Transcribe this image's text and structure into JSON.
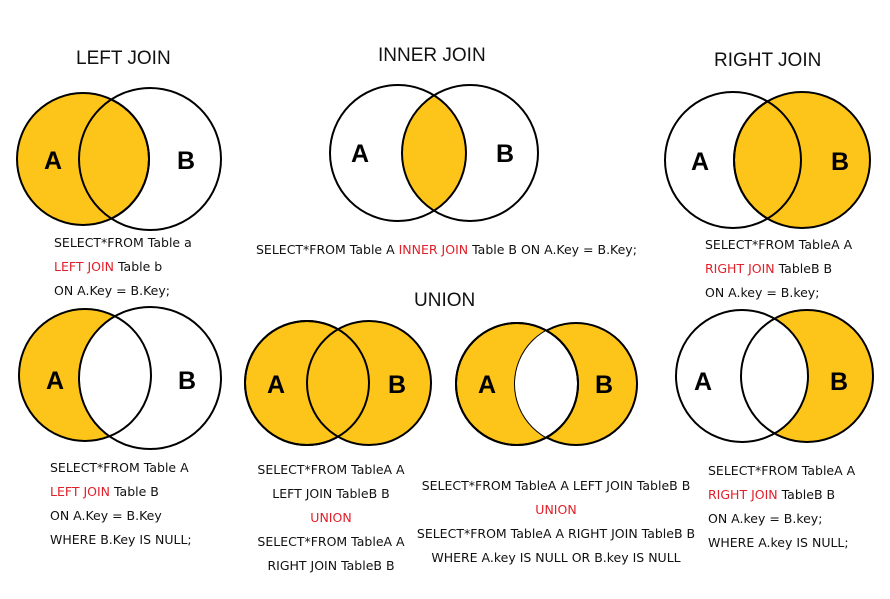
{
  "colors": {
    "fill": "#fdc41a",
    "stroke": "#000000",
    "keyword": "#e0202a",
    "background": "#ffffff"
  },
  "titles": {
    "left_join": "LEFT JOIN",
    "inner_join": "INNER JOIN",
    "right_join": "RIGHT JOIN",
    "union": "UNION"
  },
  "venn": {
    "label_a": "A",
    "label_b": "B"
  },
  "sql": {
    "left_join": {
      "l1": "SELECT*FROM Table a",
      "l2_kw": "LEFT JOIN",
      "l2_rest": " Table b",
      "l3": "ON A.Key = B.Key;"
    },
    "inner_join": {
      "pre": "SELECT*FROM Table A ",
      "kw": "INNER JOIN",
      "post": " Table B ON A.Key = B.Key;"
    },
    "right_join": {
      "l1": "SELECT*FROM TableA A",
      "l2_kw": "RIGHT JOIN",
      "l2_rest": " TableB B",
      "l3": "ON A.key = B.key;"
    },
    "left_only": {
      "l1": "SELECT*FROM Table A",
      "l2_kw": "LEFT JOIN",
      "l2_rest": " Table B",
      "l3": "ON A.Key = B.Key",
      "l4": "WHERE B.Key IS NULL;"
    },
    "full_union": {
      "l1": "SELECT*FROM TableA A",
      "l2": "LEFT JOIN TableB B",
      "l3_kw": "UNION",
      "l4": "SELECT*FROM TableA A",
      "l5": "RIGHT JOIN TableB B"
    },
    "union_exclusive": {
      "l1": "SELECT*FROM TableA A LEFT JOIN TableB B",
      "l2_kw": "UNION",
      "l3": "SELECT*FROM TableA A RIGHT JOIN TableB B",
      "l4": "WHERE A.key IS NULL OR B.key IS NULL"
    },
    "right_only": {
      "l1": "SELECT*FROM TableA A",
      "l2_kw": "RIGHT JOIN",
      "l2_rest": " TableB B",
      "l3": "ON A.key = B.key;",
      "l4": "WHERE A.key IS NULL;"
    }
  }
}
